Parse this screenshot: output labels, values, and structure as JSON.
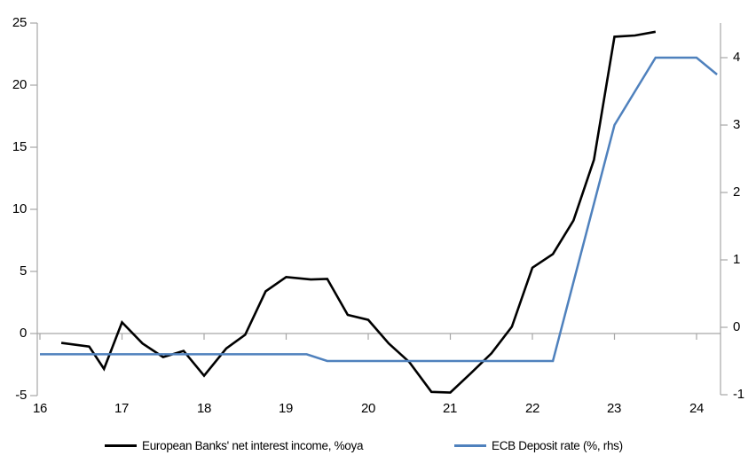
{
  "chart_data": {
    "type": "line",
    "title": "",
    "legend_position": "bottom",
    "grid": "zero-line-only",
    "x_axis": {
      "ticks": [
        "16",
        "17",
        "18",
        "19",
        "20",
        "21",
        "22",
        "23",
        "24"
      ],
      "range": [
        16,
        24.3
      ]
    },
    "left_axis": {
      "ticks": [
        "25",
        "20",
        "15",
        "10",
        "5",
        "0",
        "-5"
      ],
      "tick_values": [
        25,
        20,
        15,
        10,
        5,
        0,
        -5
      ],
      "ylim": [
        -5,
        25
      ]
    },
    "right_axis": {
      "ticks": [
        "4",
        "3",
        "2",
        "1",
        "0",
        "-1"
      ],
      "tick_values": [
        4,
        3,
        2,
        1,
        0,
        -1
      ],
      "ylim": [
        -1.1,
        4.5
      ]
    },
    "series": [
      {
        "name": "European Banks' net interest income, %oya",
        "axis": "left",
        "color": "#000000",
        "width": 2.6,
        "points": [
          [
            16.26,
            -0.76
          ],
          [
            16.6,
            -1.05
          ],
          [
            16.78,
            -2.85
          ],
          [
            17.0,
            0.9
          ],
          [
            17.25,
            -0.8
          ],
          [
            17.5,
            -1.9
          ],
          [
            17.75,
            -1.4
          ],
          [
            18.0,
            -3.4
          ],
          [
            18.27,
            -1.2
          ],
          [
            18.5,
            -0.1
          ],
          [
            18.75,
            3.4
          ],
          [
            19.0,
            4.55
          ],
          [
            19.3,
            4.35
          ],
          [
            19.5,
            4.4
          ],
          [
            19.75,
            1.5
          ],
          [
            20.0,
            1.1
          ],
          [
            20.25,
            -0.8
          ],
          [
            20.5,
            -2.3
          ],
          [
            20.77,
            -4.7
          ],
          [
            21.0,
            -4.75
          ],
          [
            21.25,
            -3.2
          ],
          [
            21.5,
            -1.6
          ],
          [
            21.75,
            0.55
          ],
          [
            22.0,
            5.3
          ],
          [
            22.25,
            6.4
          ],
          [
            22.5,
            9.1
          ],
          [
            22.75,
            14.0
          ],
          [
            23.0,
            23.9
          ],
          [
            23.25,
            24.0
          ],
          [
            23.5,
            24.3
          ]
        ]
      },
      {
        "name": "ECB Deposit rate (%, rhs)",
        "axis": "right",
        "color": "#4F81BD",
        "width": 2.5,
        "points": [
          [
            16.0,
            -0.4
          ],
          [
            19.25,
            -0.4
          ],
          [
            19.5,
            -0.5
          ],
          [
            22.25,
            -0.5
          ],
          [
            23.0,
            3.0
          ],
          [
            23.25,
            3.5
          ],
          [
            23.5,
            4.0
          ],
          [
            24.0,
            4.0
          ],
          [
            24.25,
            3.75
          ]
        ]
      }
    ]
  },
  "colors": {
    "axis": "#A6A6A6",
    "background": "#FFFFFF",
    "series1": "#000000",
    "series2": "#4F81BD"
  }
}
